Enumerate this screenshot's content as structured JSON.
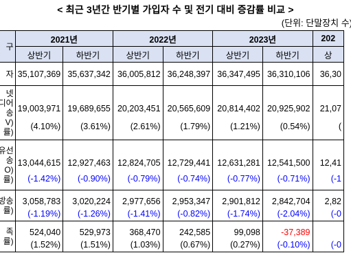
{
  "title": "< 최근 3년간 반기별 가입자 수 및 전기 대비 증감률 비교 >",
  "unit": "(단위: 단말장치 수)",
  "header": {
    "corner": "구",
    "years": [
      "2021년",
      "2022년",
      "2023년",
      "202"
    ],
    "halves": [
      "상반기",
      "하반기",
      "상반기",
      "하반기",
      "상반기",
      "하반기",
      "상"
    ]
  },
  "rows": [
    {
      "label": [
        "자"
      ],
      "values": [
        "35,107,369",
        "35,637,342",
        "36,005,812",
        "36,248,397",
        "36,347,495",
        "36,310,106",
        "36,30"
      ],
      "pcts": null
    },
    {
      "label": [
        "넷",
        "디어",
        "송",
        "V)",
        "률)"
      ],
      "values": [
        "19,003,971",
        "19,689,655",
        "20,203,451",
        "20,565,609",
        "20,814,402",
        "20,925,902",
        "21,07"
      ],
      "pcts": [
        "(4.10%)",
        "(3.61%)",
        "(2.61%)",
        "(1.79%)",
        "(1.21%)",
        "(0.54%)",
        "("
      ],
      "pct_colors": [
        "",
        "",
        "",
        "",
        "",
        "",
        ""
      ]
    },
    {
      "label": [
        "유선",
        "송",
        "O)",
        "률)"
      ],
      "values": [
        "13,044,615",
        "12,927,463",
        "12,824,705",
        "12,729,441",
        "12,631,281",
        "12,541,500",
        "12,41"
      ],
      "pcts": [
        "(-1.42%)",
        "(-0.90%)",
        "(-0.79%)",
        "(-0.74%)",
        "(-0.77%)",
        "(-0.71%)",
        "(-1"
      ],
      "pct_colors": [
        "neg",
        "neg",
        "neg",
        "neg",
        "neg",
        "neg",
        "neg"
      ]
    },
    {
      "label": [
        "방송",
        "률)"
      ],
      "values": [
        "3,058,783",
        "3,020,224",
        "2,977,656",
        "2,953,347",
        "2,901,812",
        "2,842,704",
        "2,82"
      ],
      "pcts": [
        "(-1.19%)",
        "(-1.26%)",
        "(-1.41%)",
        "(-0.82%)",
        "(-1.74%)",
        "(-2.04%)",
        "(-0"
      ],
      "pct_colors": [
        "neg",
        "neg",
        "neg",
        "neg",
        "neg",
        "neg",
        "neg"
      ]
    },
    {
      "label": [
        "족",
        "률)"
      ],
      "values": [
        "524,040",
        "529,973",
        "368,470",
        "242,585",
        "99,098",
        "-37,389",
        ""
      ],
      "value_colors": [
        "",
        "",
        "",
        "",
        "",
        "negred",
        ""
      ],
      "pcts": [
        "(1.52%)",
        "(1.51%)",
        "(1.03%)",
        "(0.67%)",
        "(0.27%)",
        "(-0.10%)",
        "(-0"
      ],
      "pct_colors": [
        "",
        "",
        "",
        "",
        "",
        "neg",
        "neg"
      ]
    }
  ]
}
